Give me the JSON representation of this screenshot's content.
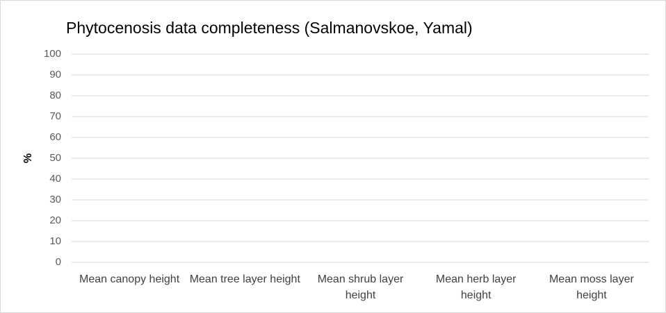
{
  "chart_data": {
    "type": "bar",
    "title": "Phytocenosis data completeness (Salmanovskoe, Yamal)",
    "y_label": "%",
    "categories": [
      "Mean canopy height",
      "Mean tree layer height",
      "Mean shrub layer height",
      "Mean herb layer height",
      "Mean moss layer height"
    ],
    "values": [
      0,
      0,
      0,
      0,
      0
    ],
    "color": "#4472c4",
    "ylim": [
      0,
      100
    ],
    "yticks": [
      0,
      10,
      20,
      30,
      40,
      50,
      60,
      70,
      80,
      90,
      100
    ],
    "grid": true
  }
}
